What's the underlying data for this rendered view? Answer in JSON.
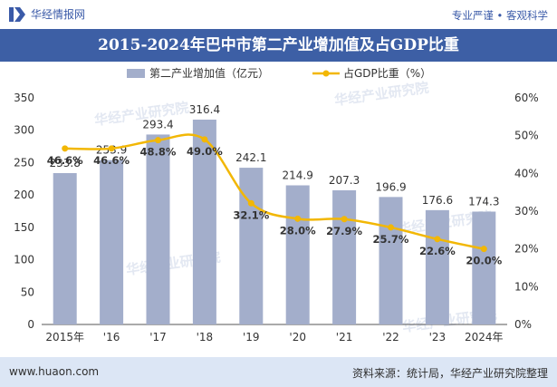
{
  "header": {
    "logo_text": "华经情报网",
    "slogan": "专业严谨 • 客观科学"
  },
  "title": "2015-2024年巴中市第二产业增加值及占GDP比重",
  "footer": {
    "website": "www.huaon.com",
    "source": "资料来源：统计局，华经产业研究院整理"
  },
  "watermark": "华经产业研究院",
  "colors": {
    "bar": "#a3aecb",
    "line": "#f2b705",
    "title_bg": "#3d5fa5",
    "footer_bg": "#dce6f5",
    "brand": "#3a5aa8"
  },
  "chart_data": {
    "type": "bar",
    "categories": [
      "2015年",
      "'16",
      "'17",
      "'18",
      "'19",
      "'20",
      "'21",
      "'22",
      "'23",
      "2024年"
    ],
    "series": [
      {
        "name": "第二产业增加值（亿元）",
        "type": "bar",
        "axis": "left",
        "values": [
          233.8,
          253.9,
          293.4,
          316.4,
          242.1,
          214.9,
          207.3,
          196.9,
          176.6,
          174.3
        ],
        "labels": [
          "233.8",
          "253.9",
          "293.4",
          "316.4",
          "242.1",
          "214.9",
          "207.3",
          "196.9",
          "176.6",
          "174.3"
        ]
      },
      {
        "name": "占GDP比重（%）",
        "type": "line",
        "axis": "right",
        "values": [
          46.6,
          46.6,
          48.8,
          49.0,
          32.1,
          28.0,
          27.9,
          25.7,
          22.6,
          20.0
        ],
        "labels": [
          "46.6%",
          "46.6%",
          "48.8%",
          "49.0%",
          "32.1%",
          "28.0%",
          "27.9%",
          "25.7%",
          "22.6%",
          "20.0%"
        ]
      }
    ],
    "y_left": {
      "min": 0,
      "max": 350,
      "ticks": [
        "0",
        "50",
        "100",
        "150",
        "200",
        "250",
        "300",
        "350"
      ]
    },
    "y_right": {
      "min": 0,
      "max": 60,
      "ticks": [
        "0%",
        "10%",
        "20%",
        "30%",
        "40%",
        "50%",
        "60%"
      ]
    },
    "legend_position": "top",
    "grid": false
  }
}
